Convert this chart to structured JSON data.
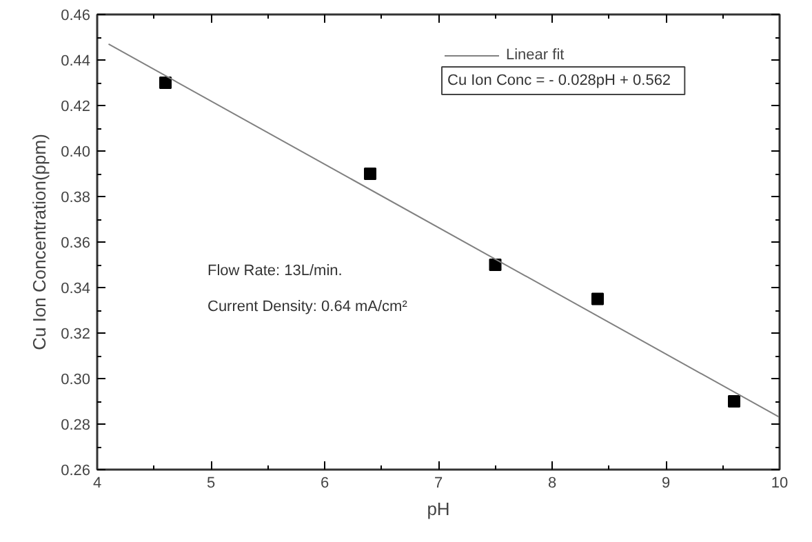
{
  "chart_data": {
    "type": "scatter",
    "xlabel": "pH",
    "ylabel": "Cu Ion Concentration(ppm)",
    "x": [
      4.6,
      6.4,
      7.5,
      8.4,
      9.6
    ],
    "series": [
      {
        "color": "#000000",
        "values": [
          0.43,
          0.39,
          0.35,
          0.335,
          0.29
        ],
        "marker": "square"
      },
      {
        "name": "Linear fit",
        "type": "line",
        "color": "#808080",
        "x": [
          4.1,
          10
        ],
        "values": [
          0.447,
          0.283
        ]
      }
    ],
    "xlim": [
      4,
      10
    ],
    "xticks": [
      4,
      5,
      6,
      7,
      8,
      9,
      10
    ],
    "ylim": [
      0.26,
      0.46
    ],
    "yticks": [
      {
        "value": 0.26,
        "label": "0.26"
      },
      {
        "value": 0.28,
        "label": "0.28"
      },
      {
        "value": 0.3,
        "label": "0.30"
      },
      {
        "value": 0.32,
        "label": "0.32"
      },
      {
        "value": 0.34,
        "label": "0.34"
      },
      {
        "value": 0.36,
        "label": "0.36"
      },
      {
        "value": 0.38,
        "label": "0.38"
      },
      {
        "value": 0.4,
        "label": "0.40"
      },
      {
        "value": 0.42,
        "label": "0.42"
      },
      {
        "value": 0.44,
        "label": "0.44"
      },
      {
        "value": 0.46,
        "label": "0.46"
      }
    ],
    "annotations": [
      "Cu Ion Conc  =  - 0.028pH + 0.562",
      "Flow Rate: 13L/min.",
      "Current Density: 0.64 mA/cm²"
    ],
    "legend": "top right",
    "grid": false
  }
}
